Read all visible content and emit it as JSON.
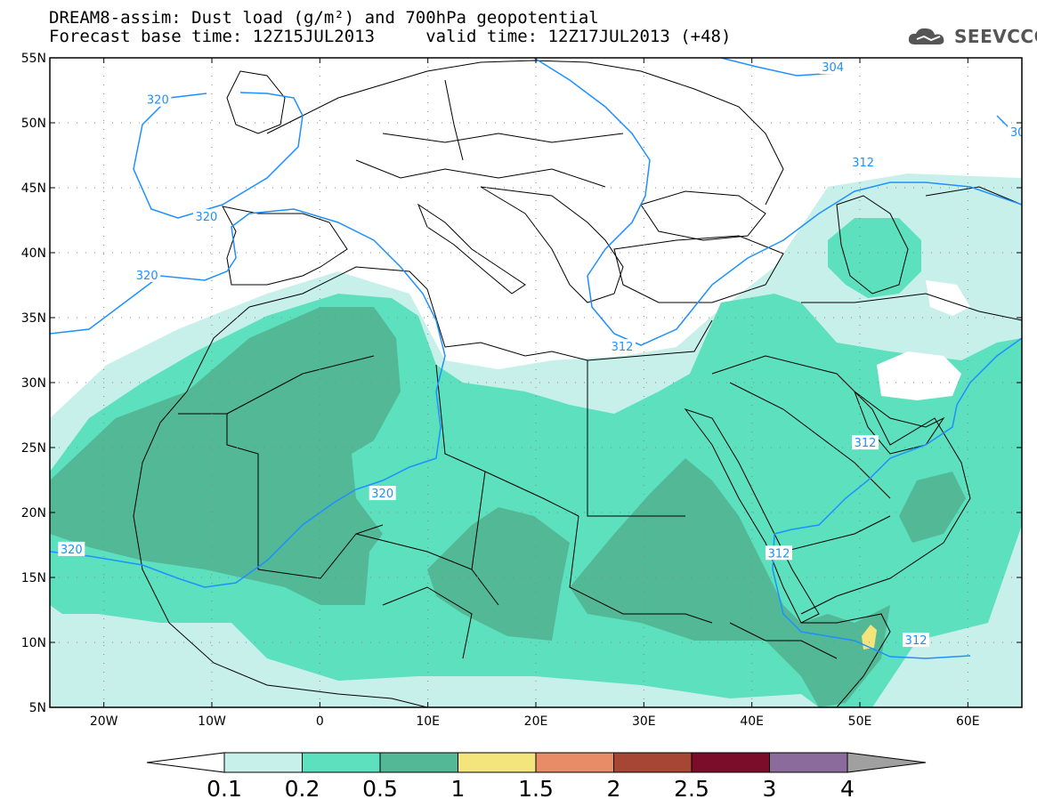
{
  "title": {
    "line1": "DREAM8-assim: Dust load (g/m²) and 700hPa geopotential",
    "line2": "Forecast base time: 12Z15JUL2013     valid time: 12Z17JUL2013 (+48)"
  },
  "logo": {
    "text": "SEEVCCC",
    "icon": "cloud-icon"
  },
  "map": {
    "lon_range": [
      -25,
      65
    ],
    "lat_range": [
      5,
      55
    ],
    "lat_ticks": [
      {
        "value": 55,
        "label": "55N"
      },
      {
        "value": 50,
        "label": "50N"
      },
      {
        "value": 45,
        "label": "45N"
      },
      {
        "value": 40,
        "label": "40N"
      },
      {
        "value": 35,
        "label": "35N"
      },
      {
        "value": 30,
        "label": "30N"
      },
      {
        "value": 25,
        "label": "25N"
      },
      {
        "value": 20,
        "label": "20N"
      },
      {
        "value": 15,
        "label": "15N"
      },
      {
        "value": 10,
        "label": "10N"
      },
      {
        "value": 5,
        "label": "5N"
      }
    ],
    "lon_ticks": [
      {
        "value": -20,
        "label": "20W"
      },
      {
        "value": -10,
        "label": "10W"
      },
      {
        "value": 0,
        "label": "0"
      },
      {
        "value": 10,
        "label": "10E"
      },
      {
        "value": 20,
        "label": "20E"
      },
      {
        "value": 30,
        "label": "30E"
      },
      {
        "value": 40,
        "label": "40E"
      },
      {
        "value": 50,
        "label": "50E"
      },
      {
        "value": 60,
        "label": "60E"
      }
    ],
    "contour_labels": [
      {
        "text": "320",
        "lon": -15,
        "lat": 51.8
      },
      {
        "text": "320",
        "lon": -10.5,
        "lat": 42.8
      },
      {
        "text": "320",
        "lon": -16,
        "lat": 38.3
      },
      {
        "text": "320",
        "lon": 5.8,
        "lat": 21.5
      },
      {
        "text": "320",
        "lon": -23,
        "lat": 17.2
      },
      {
        "text": "304",
        "lon": 47.5,
        "lat": 54.3
      },
      {
        "text": "312",
        "lon": 50.3,
        "lat": 47
      },
      {
        "text": "312",
        "lon": 28,
        "lat": 32.8
      },
      {
        "text": "312",
        "lon": 50.5,
        "lat": 25.4
      },
      {
        "text": "312",
        "lon": 42.5,
        "lat": 16.9
      },
      {
        "text": "312",
        "lon": 55.2,
        "lat": 10.2
      },
      {
        "text": "30",
        "lon": 64.6,
        "lat": 49.3
      }
    ]
  },
  "colorbar": {
    "labels": [
      "0.1",
      "0.2",
      "0.5",
      "1",
      "1.5",
      "2",
      "2.5",
      "3",
      "4"
    ],
    "colors": [
      "#c8f0ea",
      "#5ce0bd",
      "#53b896",
      "#f3e57c",
      "#e88c68",
      "#a84636",
      "#7b0d2a",
      "#8b6a9c"
    ],
    "under_color": "#ffffff",
    "over_color": "#a0a0a0"
  },
  "colors": {
    "dust_low": "#c8f0ea",
    "dust_mid": "#5ce0bd",
    "dust_high": "#53b896",
    "dust_peak": "#f3e57c",
    "contour": "#1E90FF"
  }
}
